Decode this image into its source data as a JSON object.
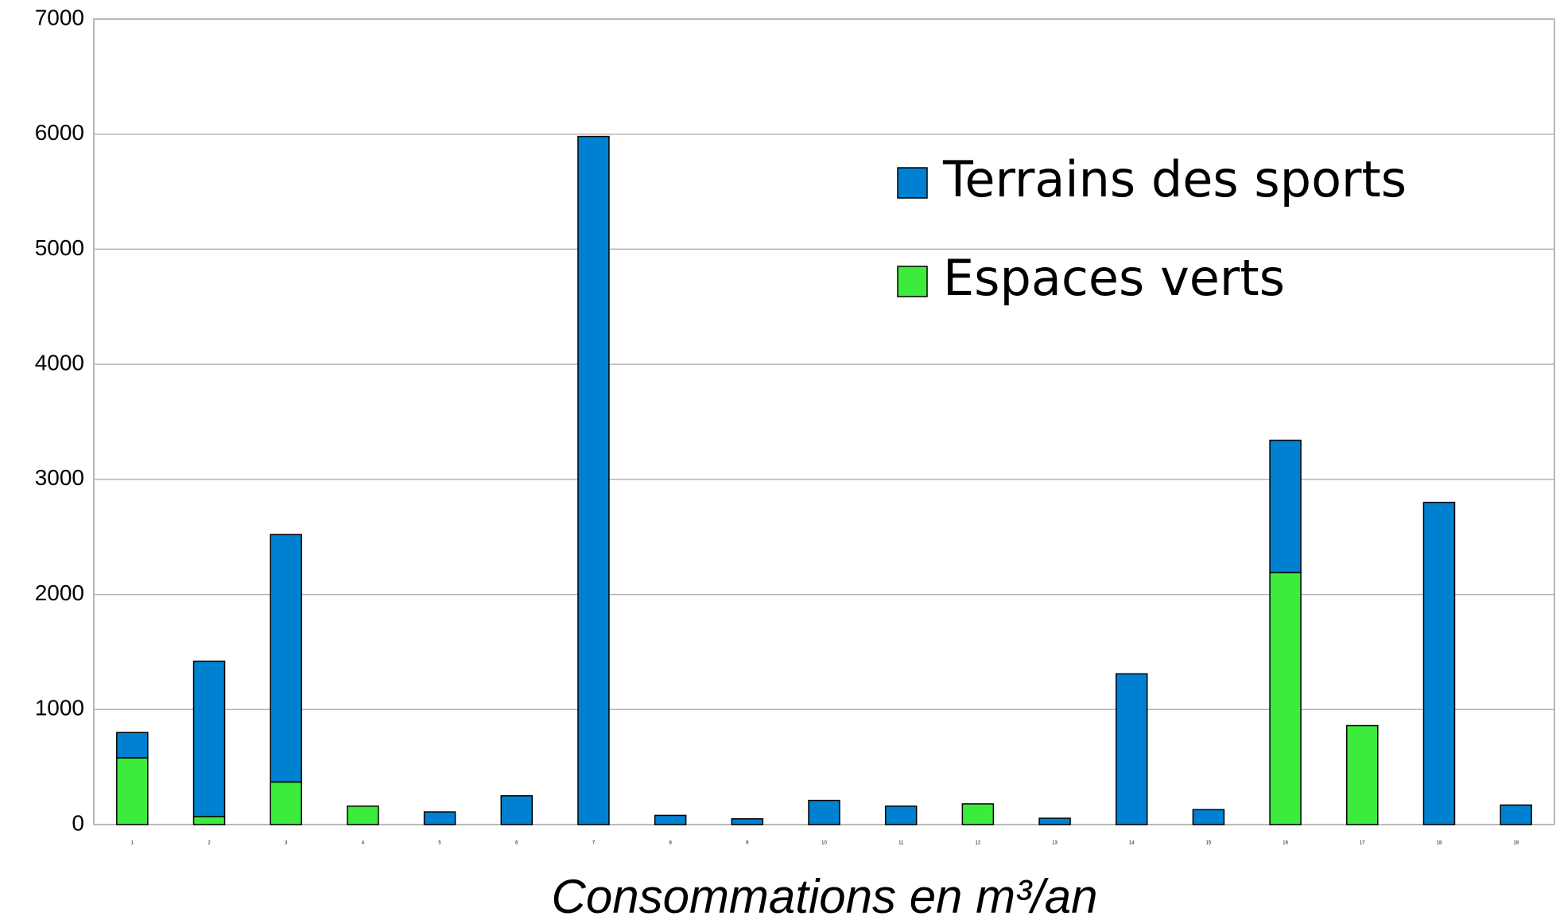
{
  "chart_data": {
    "type": "stacked_bar",
    "x_label": "Consommations en m³/an",
    "categories": [
      "1",
      "2",
      "3",
      "4",
      "5",
      "6",
      "7",
      "8",
      "9",
      "10",
      "11",
      "12",
      "13",
      "14",
      "15",
      "16",
      "17",
      "18",
      "19"
    ],
    "series": [
      {
        "name": "Espaces verts",
        "color": "#3deb3d",
        "values": [
          580,
          70,
          370,
          160,
          0,
          0,
          0,
          0,
          0,
          0,
          0,
          180,
          0,
          0,
          0,
          2190,
          860,
          0,
          0
        ]
      },
      {
        "name": "Terrains des sports",
        "color": "#0080d0",
        "values": [
          220,
          1350,
          2150,
          0,
          110,
          250,
          5980,
          80,
          50,
          210,
          160,
          0,
          55,
          1310,
          130,
          1150,
          0,
          2800,
          170
        ]
      }
    ],
    "ylim": [
      0,
      7000
    ],
    "yticks": [
      0,
      1000,
      2000,
      3000,
      4000,
      5000,
      6000,
      7000
    ],
    "grid": true,
    "legend": "upper right"
  }
}
